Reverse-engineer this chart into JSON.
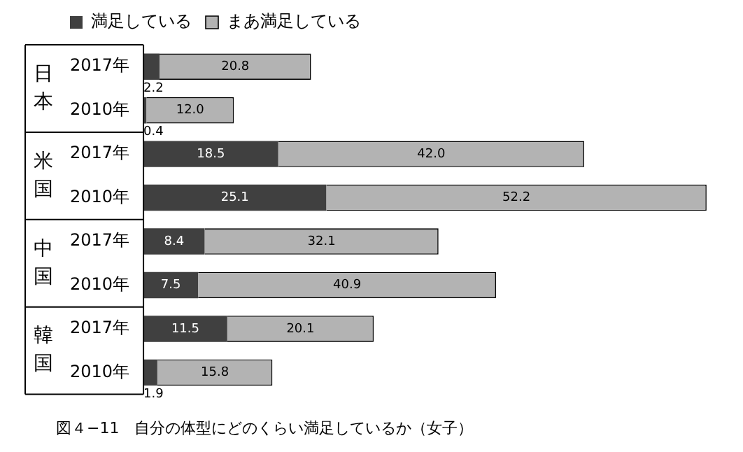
{
  "chart_data": {
    "type": "bar",
    "orientation": "horizontal",
    "stacked": true,
    "title": "図４−11　自分の体型にどのくらい満足しているか（女子）",
    "categories": [
      "2017年",
      "2010年",
      "2017年",
      "2010年",
      "2017年",
      "2010年",
      "2017年",
      "2010年"
    ],
    "annotations": [
      "日本",
      "米国",
      "中国",
      "韓国"
    ],
    "series": [
      {
        "name": "満足している",
        "color": "#404040",
        "values": [
          2.2,
          0.4,
          18.5,
          25.1,
          8.4,
          7.5,
          11.5,
          1.9
        ],
        "value_labels": [
          "2.2",
          "0.4",
          "18.5",
          "25.1",
          "8.4",
          "7.5",
          "11.5",
          "1.9"
        ]
      },
      {
        "name": "まあ満足している",
        "color": "#b3b3b3",
        "values": [
          20.8,
          12.0,
          42.0,
          52.2,
          32.1,
          40.9,
          20.1,
          15.8
        ],
        "value_labels": [
          "20.8",
          "12.0",
          "42.0",
          "52.2",
          "32.1",
          "40.9",
          "20.1",
          "15.8"
        ]
      }
    ],
    "legend": "top",
    "grid": false
  }
}
